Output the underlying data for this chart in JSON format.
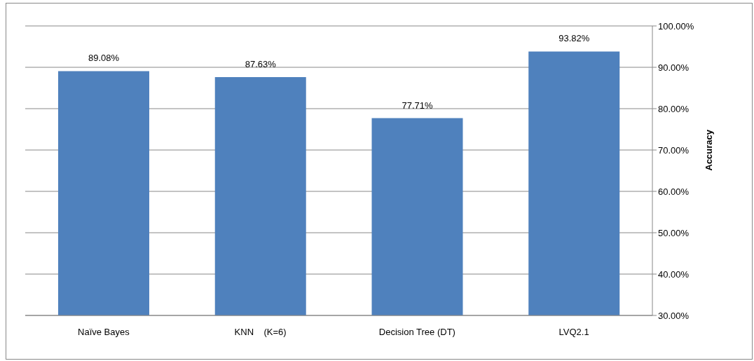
{
  "chart_data": {
    "type": "bar",
    "ylabel": "Accuracy",
    "categories": [
      "Naïve Bayes",
      "KNN    (K=6)",
      "Decision Tree (DT)",
      "LVQ2.1"
    ],
    "series": [
      {
        "color": "#4f81bd",
        "values": [
          89.08,
          87.63,
          77.71,
          93.82
        ],
        "value_labels": [
          "89.08%",
          "87.63%",
          "77.71%",
          "93.82%"
        ]
      }
    ],
    "ylim": [
      30,
      100
    ],
    "yticks": [
      {
        "value": 30,
        "label": "30.00%"
      },
      {
        "value": 40,
        "label": "40.00%"
      },
      {
        "value": 50,
        "label": "50.00%"
      },
      {
        "value": 60,
        "label": "60.00%"
      },
      {
        "value": 70,
        "label": "70.00%"
      },
      {
        "value": 80,
        "label": "80.00%"
      },
      {
        "value": 90,
        "label": "90.00%"
      },
      {
        "value": 100,
        "label": "100.00%"
      }
    ],
    "grid": "y"
  }
}
